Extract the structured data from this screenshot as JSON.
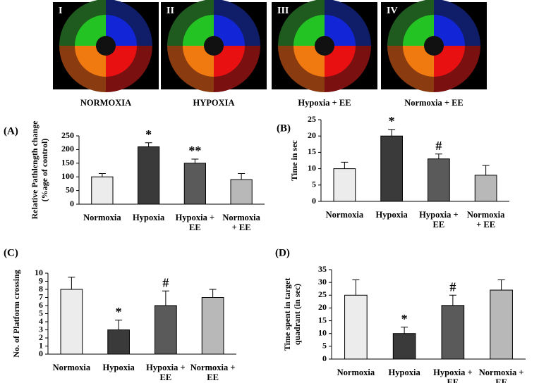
{
  "panels": [
    {
      "numeral": "I",
      "caption": "NORMOXIA"
    },
    {
      "numeral": "II",
      "caption": "HYPOXIA"
    },
    {
      "numeral": "III",
      "caption": "Hypoxia + EE"
    },
    {
      "numeral": "IV",
      "caption": "Normoxia + EE"
    }
  ],
  "chart_data": [
    {
      "type": "bar",
      "panel_label": "(A)",
      "ylabel": [
        "Relative Pathlength change",
        "(%age of control)"
      ],
      "categories": [
        [
          "Normoxia"
        ],
        [
          "Hypoxia"
        ],
        [
          "Hypoxia +",
          "EE"
        ],
        [
          "Normoxia",
          "+ EE"
        ]
      ],
      "values": [
        100,
        210,
        150,
        90
      ],
      "errors": [
        12,
        15,
        15,
        22
      ],
      "annotations": [
        null,
        "*",
        "**",
        null
      ],
      "colors": [
        "#ececec",
        "#3a3a3a",
        "#5a5a5a",
        "#b8b8b8"
      ],
      "ylim": [
        0,
        250
      ],
      "yticks": [
        0,
        50,
        100,
        150,
        200,
        250
      ]
    },
    {
      "type": "bar",
      "panel_label": "(B)",
      "ylabel": [
        "Time in sec"
      ],
      "categories": [
        [
          "Normoxia"
        ],
        [
          "Hypoxia"
        ],
        [
          "Hypoxia +",
          "EE"
        ],
        [
          "Normoxia",
          "+ EE"
        ]
      ],
      "values": [
        10,
        20,
        13,
        8
      ],
      "errors": [
        2,
        2,
        1.5,
        3
      ],
      "annotations": [
        null,
        "*",
        "#",
        null
      ],
      "colors": [
        "#ececec",
        "#3a3a3a",
        "#5a5a5a",
        "#b8b8b8"
      ],
      "ylim": [
        0,
        25
      ],
      "yticks": [
        0,
        5,
        10,
        15,
        20,
        25
      ]
    },
    {
      "type": "bar",
      "panel_label": "(C)",
      "ylabel": [
        "No. of Platform crossing"
      ],
      "categories": [
        [
          "Normoxia"
        ],
        [
          "Hypoxia"
        ],
        [
          "Hypoxia +",
          "EE"
        ],
        [
          "Normoxia +",
          "EE"
        ]
      ],
      "values": [
        8,
        3,
        6,
        7
      ],
      "errors": [
        1.5,
        1.2,
        1.8,
        1
      ],
      "annotations": [
        null,
        "*",
        "#",
        null
      ],
      "colors": [
        "#ececec",
        "#3a3a3a",
        "#5a5a5a",
        "#b8b8b8"
      ],
      "ylim": [
        0,
        10
      ],
      "yticks": [
        0,
        1,
        2,
        3,
        4,
        5,
        6,
        7,
        8,
        9,
        10
      ]
    },
    {
      "type": "bar",
      "panel_label": "(D)",
      "ylabel": [
        "Time spent in target",
        "quadrant (in sec)"
      ],
      "categories": [
        [
          "Normoxia"
        ],
        [
          "Hypoxia"
        ],
        [
          "Hypoxia +",
          "EE"
        ],
        [
          "Normoxia +",
          "EE"
        ]
      ],
      "values": [
        25,
        10,
        21,
        27
      ],
      "errors": [
        6,
        2.5,
        4,
        4
      ],
      "annotations": [
        null,
        "*",
        "#",
        null
      ],
      "colors": [
        "#ececec",
        "#3a3a3a",
        "#5a5a5a",
        "#b8b8b8"
      ],
      "ylim": [
        0,
        35
      ],
      "yticks": [
        0,
        5,
        10,
        15,
        20,
        25,
        30,
        35
      ]
    }
  ]
}
